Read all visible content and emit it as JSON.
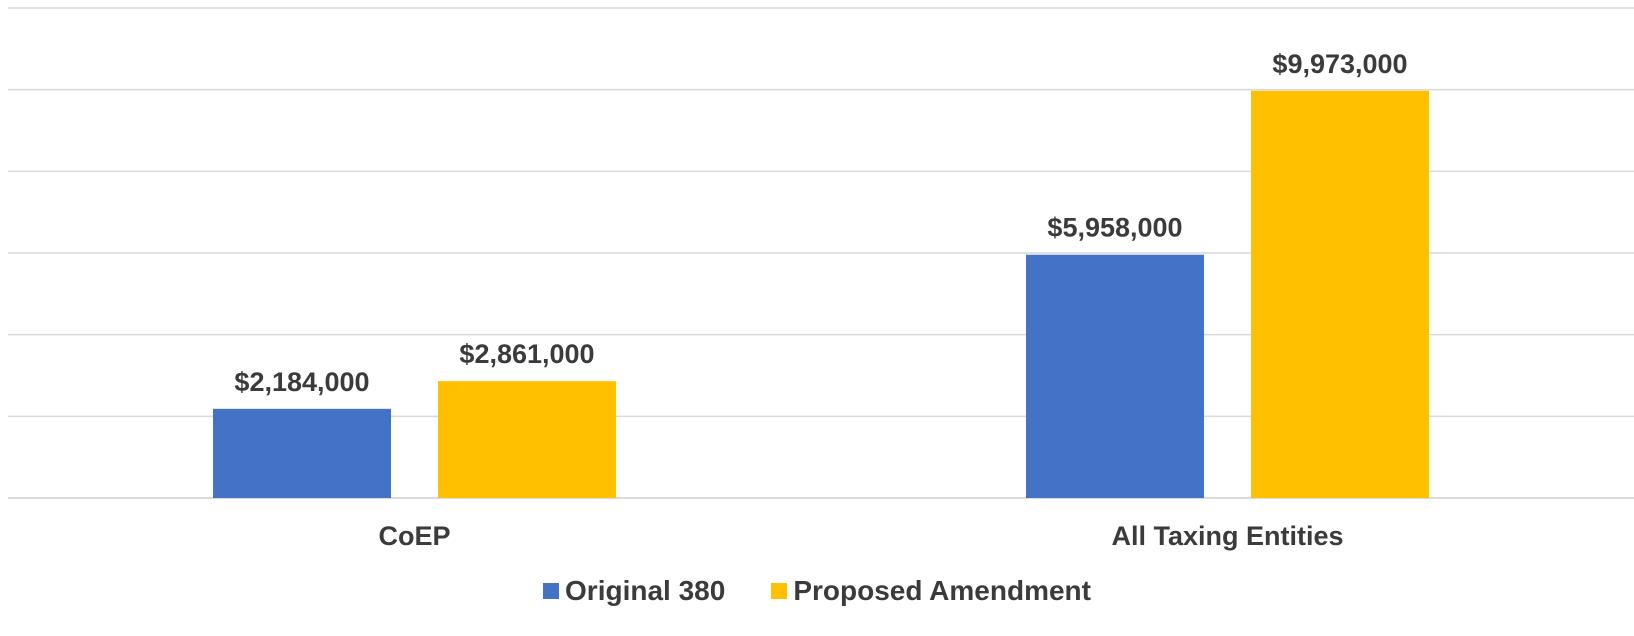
{
  "chart_data": {
    "type": "bar",
    "categories": [
      "CoEP",
      "All Taxing Entities"
    ],
    "series": [
      {
        "name": "Original 380",
        "values": [
          2184000,
          5958000
        ],
        "labels": [
          "$2,184,000",
          "$5,958,000"
        ],
        "color": "#4472C4"
      },
      {
        "name": "Proposed Amendment",
        "values": [
          2861000,
          9973000
        ],
        "labels": [
          "$2,861,000",
          "$9,973,000"
        ],
        "color": "#FFC000"
      }
    ],
    "title": "",
    "xlabel": "",
    "ylabel": "",
    "ylim": [
      0,
      12000000
    ],
    "grid": true,
    "legend_position": "bottom"
  },
  "legend": {
    "items": [
      {
        "label": "Original 380",
        "color": "#4472C4"
      },
      {
        "label": "Proposed Amendment",
        "color": "#FFC000"
      }
    ]
  }
}
